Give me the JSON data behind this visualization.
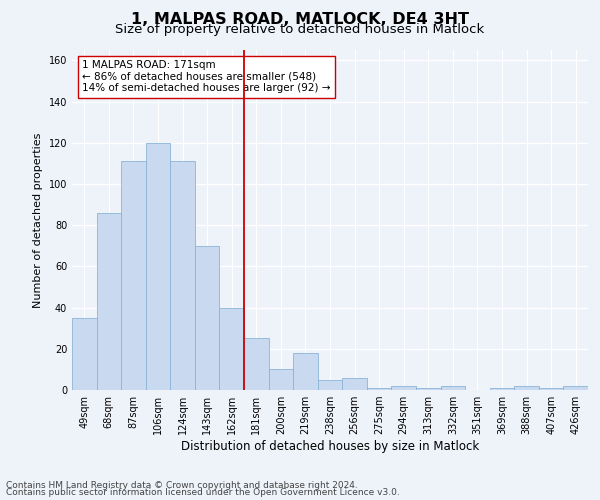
{
  "title": "1, MALPAS ROAD, MATLOCK, DE4 3HT",
  "subtitle": "Size of property relative to detached houses in Matlock",
  "xlabel": "Distribution of detached houses by size in Matlock",
  "ylabel": "Number of detached properties",
  "bar_labels": [
    "49sqm",
    "68sqm",
    "87sqm",
    "106sqm",
    "124sqm",
    "143sqm",
    "162sqm",
    "181sqm",
    "200sqm",
    "219sqm",
    "238sqm",
    "256sqm",
    "275sqm",
    "294sqm",
    "313sqm",
    "332sqm",
    "351sqm",
    "369sqm",
    "388sqm",
    "407sqm",
    "426sqm"
  ],
  "bar_values": [
    35,
    86,
    111,
    120,
    111,
    70,
    40,
    25,
    10,
    18,
    5,
    6,
    1,
    2,
    1,
    2,
    0,
    1,
    2,
    1,
    2
  ],
  "bar_color": "#c9d9f0",
  "bar_edge_color": "#8ab4d8",
  "vline_x_index": 7,
  "vline_color": "#cc0000",
  "annotation_text": "1 MALPAS ROAD: 171sqm\n← 86% of detached houses are smaller (548)\n14% of semi-detached houses are larger (92) →",
  "annotation_box_color": "#ffffff",
  "annotation_box_edge": "#cc0000",
  "footer_line1": "Contains HM Land Registry data © Crown copyright and database right 2024.",
  "footer_line2": "Contains public sector information licensed under the Open Government Licence v3.0.",
  "ylim": [
    0,
    165
  ],
  "yticks": [
    0,
    20,
    40,
    60,
    80,
    100,
    120,
    140,
    160
  ],
  "background_color": "#eef2f9",
  "grid_color": "#ffffff",
  "title_fontsize": 11.5,
  "subtitle_fontsize": 9.5,
  "xlabel_fontsize": 8.5,
  "ylabel_fontsize": 8,
  "tick_fontsize": 7,
  "annotation_fontsize": 7.5,
  "footer_fontsize": 6.5
}
